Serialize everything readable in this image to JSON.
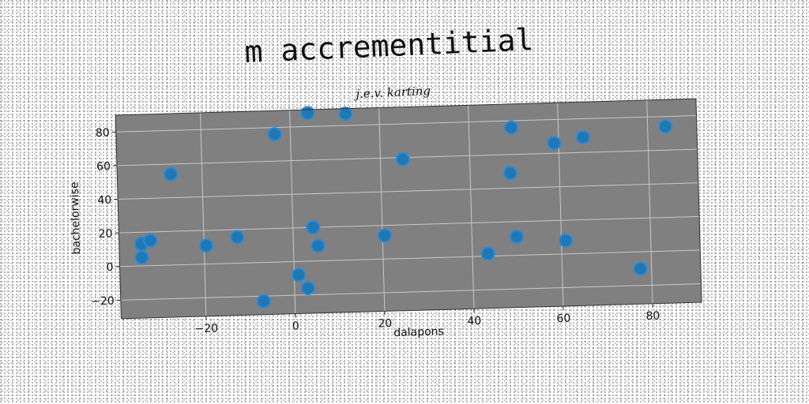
{
  "chart_data": {
    "type": "scatter",
    "title": "m accrementitial",
    "subtitle": "j.e.v. karting",
    "xlabel": "dalapons",
    "ylabel": "bachelorwise",
    "xlim": [
      -39,
      91
    ],
    "ylim": [
      -31,
      90
    ],
    "xticks": [
      -20,
      0,
      20,
      40,
      60,
      80
    ],
    "yticks": [
      -20,
      0,
      20,
      40,
      60,
      80
    ],
    "grid": true,
    "background": "#808080",
    "point_color": "#1f77b4",
    "points": [
      {
        "x": -34,
        "y": 13
      },
      {
        "x": -32,
        "y": 15
      },
      {
        "x": -34,
        "y": 5
      },
      {
        "x": -27,
        "y": 54
      },
      {
        "x": -19.5,
        "y": 11
      },
      {
        "x": -12.5,
        "y": 15.5
      },
      {
        "x": -7,
        "y": -23
      },
      {
        "x": -3.5,
        "y": 76
      },
      {
        "x": 1,
        "y": -8
      },
      {
        "x": 3,
        "y": -16
      },
      {
        "x": 4,
        "y": 88
      },
      {
        "x": 4.5,
        "y": 20
      },
      {
        "x": 5.5,
        "y": 9
      },
      {
        "x": 12.5,
        "y": 87
      },
      {
        "x": 20.5,
        "y": 14
      },
      {
        "x": 25,
        "y": 59
      },
      {
        "x": 43.5,
        "y": 1.5
      },
      {
        "x": 49,
        "y": 49
      },
      {
        "x": 49.5,
        "y": 76
      },
      {
        "x": 50,
        "y": 11
      },
      {
        "x": 59,
        "y": 66
      },
      {
        "x": 61,
        "y": 8
      },
      {
        "x": 65.5,
        "y": 69
      },
      {
        "x": 77.5,
        "y": -10
      },
      {
        "x": 84,
        "y": 74
      }
    ]
  }
}
